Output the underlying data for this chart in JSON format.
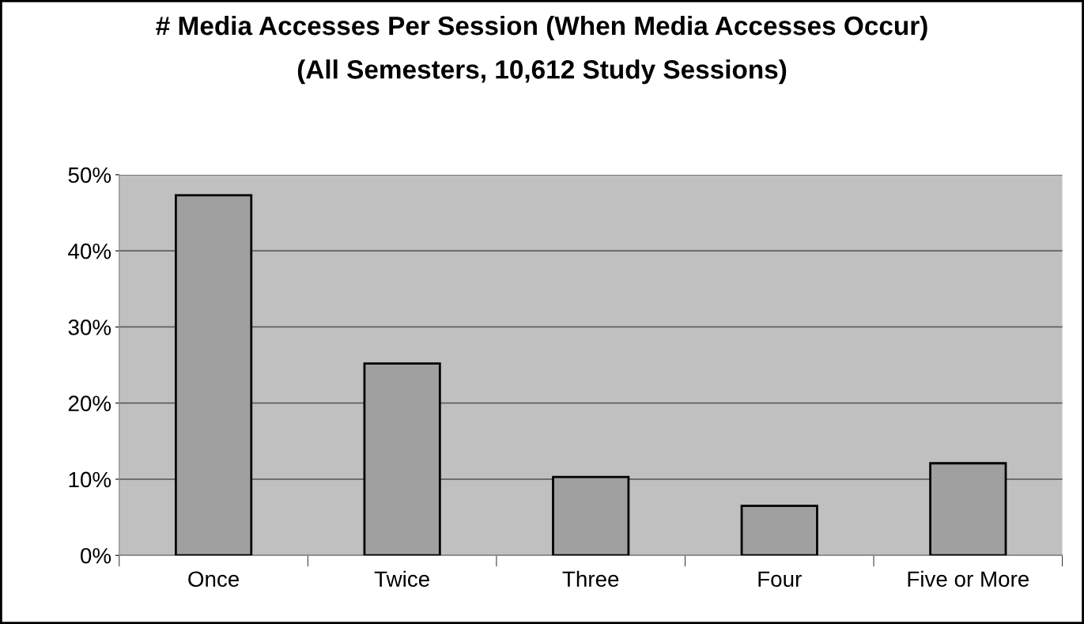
{
  "chart_data": {
    "type": "bar",
    "title": "# Media Accesses Per Session (When Media Accesses Occur)",
    "subtitle": "(All Semesters, 10,612 Study Sessions)",
    "categories": [
      "Once",
      "Twice",
      "Three",
      "Four",
      "Five or More"
    ],
    "values": [
      47.3,
      25.2,
      10.3,
      6.5,
      12.1
    ],
    "color": "#a0a0a0",
    "ylim": [
      0,
      50
    ],
    "yticks": [
      {
        "value": 0,
        "label": "0%"
      },
      {
        "value": 10,
        "label": "10%"
      },
      {
        "value": 20,
        "label": "20%"
      },
      {
        "value": 30,
        "label": "30%"
      },
      {
        "value": 40,
        "label": "40%"
      },
      {
        "value": 50,
        "label": "50%"
      }
    ],
    "grid": "y"
  }
}
